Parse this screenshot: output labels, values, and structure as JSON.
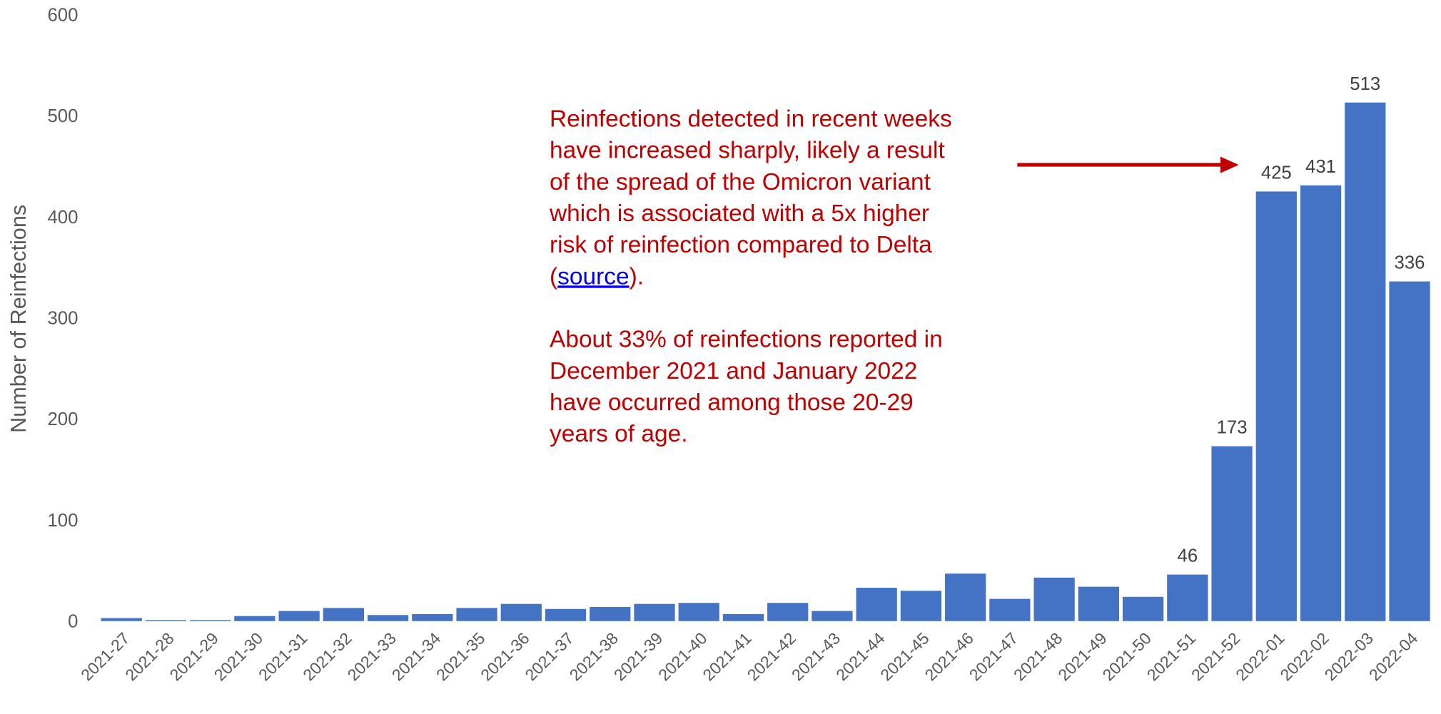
{
  "chart_data": {
    "type": "bar",
    "ylabel": "Number of Reinfections",
    "categories": [
      "2021-27",
      "2021-28",
      "2021-29",
      "2021-30",
      "2021-31",
      "2021-32",
      "2021-33",
      "2021-34",
      "2021-35",
      "2021-36",
      "2021-37",
      "2021-38",
      "2021-39",
      "2021-40",
      "2021-41",
      "2021-42",
      "2021-43",
      "2021-44",
      "2021-45",
      "2021-46",
      "2021-47",
      "2021-48",
      "2021-49",
      "2021-50",
      "2021-51",
      "2021-52",
      "2022-01",
      "2022-02",
      "2022-03",
      "2022-04"
    ],
    "values": [
      3,
      1,
      1,
      5,
      10,
      13,
      6,
      7,
      13,
      17,
      12,
      14,
      17,
      18,
      7,
      18,
      10,
      33,
      30,
      47,
      22,
      43,
      34,
      24,
      46,
      173,
      425,
      431,
      513,
      336
    ],
    "value_labels": [
      null,
      null,
      null,
      null,
      null,
      null,
      null,
      null,
      null,
      null,
      null,
      null,
      null,
      null,
      null,
      null,
      null,
      null,
      null,
      null,
      null,
      null,
      null,
      null,
      "46",
      "173",
      "425",
      "431",
      "513",
      "336"
    ],
    "color": "#4472c4",
    "ylim": [
      0,
      600
    ],
    "yticks": [
      0,
      100,
      200,
      300,
      400,
      500,
      600
    ],
    "grid": false,
    "annotation": {
      "paragraph1": [
        "Reinfections detected in recent weeks",
        "have increased sharply, likely a result",
        "of the spread of the Omicron variant",
        "which is associated with a 5x higher",
        "risk of reinfection compared to Delta"
      ],
      "last_line": [
        "(",
        "source",
        ")."
      ],
      "paragraph2": [
        "About 33% of reinfections reported in",
        "December 2021 and January 2022",
        "have occurred among those 20-29",
        "years of age."
      ],
      "color": "#c00000"
    }
  }
}
